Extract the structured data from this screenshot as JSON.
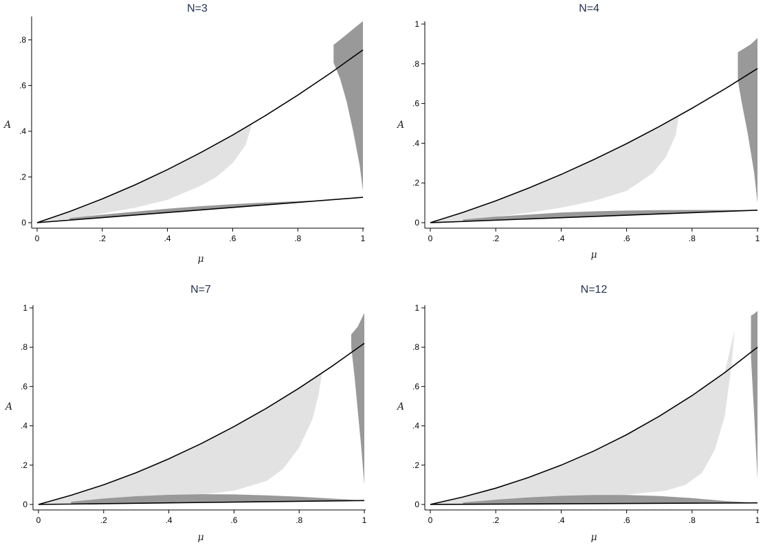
{
  "figure": {
    "colors": {
      "boundary": "#000000",
      "light_region": "#e2e2e2",
      "dark_region": "#999999",
      "title": "#1f2f4e"
    }
  },
  "chart_data": [
    {
      "type": "area",
      "title": "N=3",
      "xlabel": "μ",
      "ylabel": "A",
      "xlim": [
        0,
        1
      ],
      "ylim": [
        0,
        0.89
      ],
      "xticks": [
        0,
        0.2,
        0.4,
        0.6,
        0.8,
        1
      ],
      "xtick_labels": [
        "0",
        ".2",
        ".4",
        ".6",
        ".8",
        "1"
      ],
      "yticks": [
        0,
        0.2,
        0.4,
        0.6,
        0.8
      ],
      "ytick_labels": [
        "0",
        ".2",
        ".4",
        ".6",
        ".8"
      ],
      "grid": false,
      "upper_curve": {
        "x": [
          0,
          0.1,
          0.2,
          0.3,
          0.4,
          0.5,
          0.6,
          0.7,
          0.8,
          0.9,
          1.0
        ],
        "y": [
          0,
          0.049,
          0.104,
          0.165,
          0.232,
          0.305,
          0.383,
          0.468,
          0.558,
          0.654,
          0.756
        ]
      },
      "lower_curve": {
        "x": [
          0,
          1
        ],
        "y": [
          0,
          0.111
        ]
      },
      "light_region": {
        "x": [
          0,
          0.1,
          0.2,
          0.3,
          0.4,
          0.5,
          0.6,
          0.66,
          0.64,
          0.6,
          0.55,
          0.5,
          0.4,
          0.3,
          0.2,
          0.1,
          0
        ],
        "y": [
          0,
          0.049,
          0.104,
          0.165,
          0.232,
          0.305,
          0.383,
          0.432,
          0.34,
          0.26,
          0.2,
          0.16,
          0.1,
          0.065,
          0.04,
          0.015,
          0
        ]
      },
      "dark_region_upper": {
        "x": [
          0.91,
          0.94,
          0.97,
          1.0,
          1.0,
          0.99,
          0.97,
          0.95,
          0.93,
          0.91
        ],
        "y": [
          0.778,
          0.812,
          0.847,
          0.882,
          0.14,
          0.25,
          0.4,
          0.53,
          0.63,
          0.7
        ]
      },
      "dark_region_lower": {
        "x": [
          0.1,
          0.2,
          0.3,
          0.4,
          0.5,
          0.6,
          0.7,
          0.8,
          0.9,
          0.9,
          0.8,
          0.7,
          0.6,
          0.5,
          0.4,
          0.3,
          0.2,
          0.1
        ],
        "y": [
          0.011,
          0.022,
          0.033,
          0.044,
          0.056,
          0.067,
          0.078,
          0.089,
          0.1,
          0.099,
          0.094,
          0.088,
          0.081,
          0.072,
          0.061,
          0.048,
          0.035,
          0.02
        ]
      }
    },
    {
      "type": "area",
      "title": "N=4",
      "xlabel": "μ",
      "ylabel": "A",
      "xlim": [
        0,
        1
      ],
      "ylim": [
        0,
        1
      ],
      "xticks": [
        0,
        0.2,
        0.4,
        0.6,
        0.8,
        1
      ],
      "xtick_labels": [
        "0",
        ".2",
        ".4",
        ".6",
        ".8",
        "1"
      ],
      "yticks": [
        0,
        0.2,
        0.4,
        0.6,
        0.8,
        1
      ],
      "ytick_labels": [
        "0",
        ".2",
        ".4",
        ".6",
        ".8",
        "1"
      ],
      "grid": false,
      "upper_curve": {
        "x": [
          0,
          0.1,
          0.2,
          0.3,
          0.4,
          0.5,
          0.6,
          0.7,
          0.8,
          0.9,
          1.0
        ],
        "y": [
          0,
          0.052,
          0.11,
          0.174,
          0.243,
          0.318,
          0.398,
          0.484,
          0.576,
          0.673,
          0.776
        ]
      },
      "lower_curve": {
        "x": [
          0,
          1
        ],
        "y": [
          0,
          0.063
        ]
      },
      "light_region": {
        "x": [
          0,
          0.1,
          0.2,
          0.3,
          0.4,
          0.5,
          0.6,
          0.7,
          0.76,
          0.75,
          0.72,
          0.68,
          0.6,
          0.5,
          0.4,
          0.3,
          0.2,
          0.1,
          0
        ],
        "y": [
          0,
          0.052,
          0.11,
          0.174,
          0.243,
          0.318,
          0.398,
          0.484,
          0.54,
          0.44,
          0.33,
          0.25,
          0.16,
          0.11,
          0.075,
          0.05,
          0.03,
          0.012,
          0
        ]
      },
      "dark_region_upper": {
        "x": [
          0.94,
          0.96,
          0.98,
          1.0,
          1.0,
          0.99,
          0.97,
          0.95,
          0.94
        ],
        "y": [
          0.858,
          0.878,
          0.899,
          0.93,
          0.1,
          0.25,
          0.45,
          0.62,
          0.72
        ]
      },
      "dark_region_lower": {
        "x": [
          0.1,
          0.2,
          0.3,
          0.4,
          0.5,
          0.6,
          0.7,
          0.8,
          0.9,
          1.0,
          1.0,
          0.9,
          0.8,
          0.7,
          0.6,
          0.5,
          0.4,
          0.3,
          0.2,
          0.1
        ],
        "y": [
          0.006,
          0.013,
          0.019,
          0.025,
          0.031,
          0.038,
          0.044,
          0.05,
          0.057,
          0.063,
          0.063,
          0.064,
          0.064,
          0.063,
          0.061,
          0.057,
          0.051,
          0.041,
          0.03,
          0.016
        ]
      }
    },
    {
      "type": "area",
      "title": "N=7",
      "xlabel": "μ",
      "ylabel": "A",
      "xlim": [
        0,
        1
      ],
      "ylim": [
        0,
        1
      ],
      "xticks": [
        0,
        0.2,
        0.4,
        0.6,
        0.8,
        1
      ],
      "xtick_labels": [
        "0",
        ".2",
        ".4",
        ".6",
        ".8",
        "1"
      ],
      "yticks": [
        0,
        0.2,
        0.4,
        0.6,
        0.8,
        1
      ],
      "ytick_labels": [
        "0",
        ".2",
        ".4",
        ".6",
        ".8",
        "1"
      ],
      "grid": false,
      "upper_curve": {
        "x": [
          0,
          0.1,
          0.2,
          0.3,
          0.4,
          0.5,
          0.6,
          0.7,
          0.8,
          0.9,
          1.0
        ],
        "y": [
          0,
          0.047,
          0.1,
          0.162,
          0.232,
          0.31,
          0.396,
          0.49,
          0.592,
          0.702,
          0.82
        ]
      },
      "lower_curve": {
        "x": [
          0,
          1
        ],
        "y": [
          0,
          0.02
        ]
      },
      "light_region": {
        "x": [
          0,
          0.1,
          0.2,
          0.3,
          0.4,
          0.5,
          0.6,
          0.7,
          0.8,
          0.87,
          0.86,
          0.84,
          0.8,
          0.75,
          0.7,
          0.6,
          0.5,
          0.4,
          0.3,
          0.2,
          0.1,
          0
        ],
        "y": [
          0,
          0.047,
          0.1,
          0.162,
          0.232,
          0.31,
          0.396,
          0.49,
          0.592,
          0.67,
          0.56,
          0.43,
          0.29,
          0.18,
          0.12,
          0.07,
          0.05,
          0.035,
          0.025,
          0.015,
          0.006,
          0
        ]
      },
      "dark_region_upper": {
        "x": [
          0.96,
          0.98,
          1.0,
          1.0,
          0.99,
          0.97,
          0.96
        ],
        "y": [
          0.865,
          0.905,
          0.975,
          0.1,
          0.3,
          0.65,
          0.8
        ]
      },
      "dark_region_lower": {
        "x": [
          0.1,
          0.2,
          0.3,
          0.4,
          0.5,
          0.6,
          0.7,
          0.8,
          0.9,
          1.0,
          1.0,
          0.9,
          0.8,
          0.7,
          0.6,
          0.5,
          0.4,
          0.3,
          0.2,
          0.1
        ],
        "y": [
          0.002,
          0.004,
          0.006,
          0.008,
          0.01,
          0.012,
          0.014,
          0.016,
          0.018,
          0.02,
          0.02,
          0.03,
          0.039,
          0.046,
          0.051,
          0.052,
          0.049,
          0.042,
          0.03,
          0.014
        ]
      }
    },
    {
      "type": "area",
      "title": "N=12",
      "xlabel": "μ",
      "ylabel": "A",
      "xlim": [
        0,
        1
      ],
      "ylim": [
        0,
        1
      ],
      "xticks": [
        0,
        0.2,
        0.4,
        0.6,
        0.8,
        1
      ],
      "xtick_labels": [
        "0",
        ".2",
        ".4",
        ".6",
        ".8",
        "1"
      ],
      "yticks": [
        0,
        0.2,
        0.4,
        0.6,
        0.8,
        1
      ],
      "ytick_labels": [
        "0",
        ".2",
        ".4",
        ".6",
        ".8",
        "1"
      ],
      "grid": false,
      "upper_curve": {
        "x": [
          0,
          0.1,
          0.2,
          0.3,
          0.4,
          0.5,
          0.6,
          0.7,
          0.8,
          0.9,
          1.0
        ],
        "y": [
          0,
          0.038,
          0.083,
          0.137,
          0.2,
          0.272,
          0.355,
          0.449,
          0.554,
          0.671,
          0.8
        ]
      },
      "lower_curve": {
        "x": [
          0,
          1
        ],
        "y": [
          0,
          0.008
        ]
      },
      "light_region": {
        "x": [
          0,
          0.1,
          0.2,
          0.3,
          0.4,
          0.5,
          0.6,
          0.7,
          0.8,
          0.9,
          0.93,
          0.92,
          0.9,
          0.87,
          0.83,
          0.78,
          0.72,
          0.6,
          0.5,
          0.4,
          0.3,
          0.2,
          0.1,
          0
        ],
        "y": [
          0,
          0.038,
          0.083,
          0.137,
          0.2,
          0.272,
          0.355,
          0.449,
          0.554,
          0.671,
          0.89,
          0.7,
          0.45,
          0.28,
          0.16,
          0.1,
          0.07,
          0.05,
          0.04,
          0.03,
          0.02,
          0.012,
          0.005,
          0
        ]
      },
      "dark_region_upper": {
        "x": [
          0.98,
          0.99,
          1.0,
          1.0,
          0.99,
          0.98
        ],
        "y": [
          0.96,
          0.97,
          0.985,
          0.13,
          0.45,
          0.75
        ]
      },
      "dark_region_lower": {
        "x": [
          0.1,
          0.2,
          0.3,
          0.4,
          0.5,
          0.6,
          0.7,
          0.8,
          0.9,
          1.0,
          1.0,
          0.9,
          0.8,
          0.7,
          0.6,
          0.5,
          0.4,
          0.3,
          0.2,
          0.1
        ],
        "y": [
          0.001,
          0.002,
          0.002,
          0.003,
          0.004,
          0.005,
          0.006,
          0.006,
          0.007,
          0.008,
          0.008,
          0.018,
          0.032,
          0.043,
          0.048,
          0.048,
          0.044,
          0.036,
          0.024,
          0.01
        ]
      }
    }
  ]
}
